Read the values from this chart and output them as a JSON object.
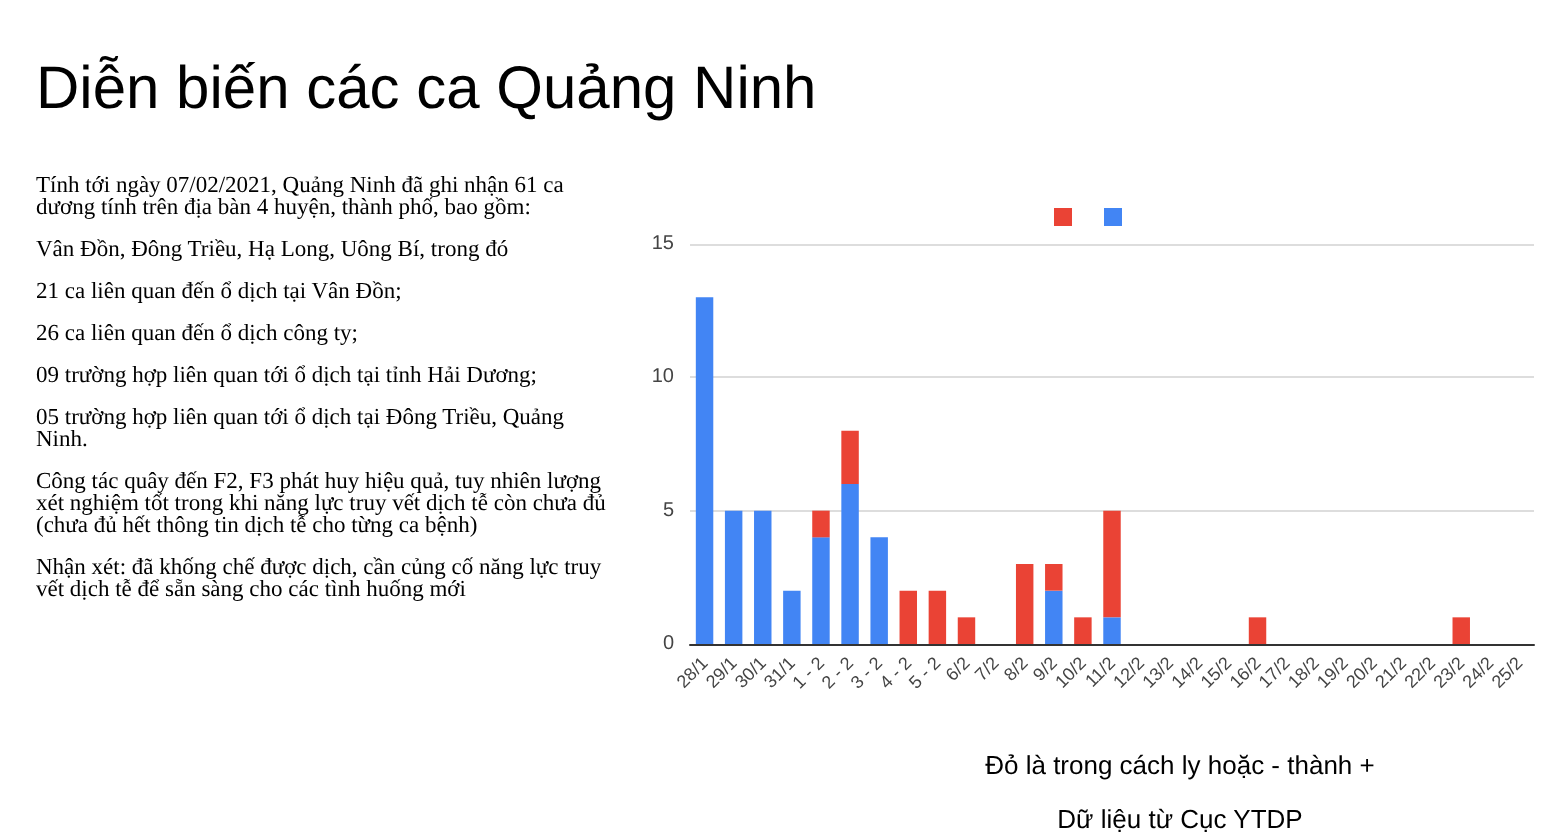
{
  "chart_data": {
    "type": "bar",
    "title": "Diễn biến các ca Quảng Ninh",
    "categories": [
      "28/1",
      "29/1",
      "30/1",
      "31/1",
      "1 - 2",
      "2 - 2",
      "3 - 2",
      "4 - 2",
      "5 - 2",
      "6/2",
      "7/2",
      "8/2",
      "9/2",
      "10/2",
      "11/2",
      "12/2",
      "13/2",
      "14/2",
      "15/2",
      "16/2",
      "17/2",
      "18/2",
      "19/2",
      "20/2",
      "21/2",
      "22/2",
      "23/2",
      "24/2",
      "25/2"
    ],
    "series": [
      {
        "color": "#4285f4",
        "values": [
          13,
          5,
          5,
          2,
          4,
          6,
          4,
          0,
          0,
          0,
          0,
          0,
          2,
          0,
          1,
          0,
          0,
          0,
          0,
          0,
          0,
          0,
          0,
          0,
          0,
          0,
          0,
          0,
          0
        ]
      },
      {
        "color": "#ea4335",
        "values": [
          0,
          0,
          0,
          0,
          1,
          2,
          0,
          2,
          2,
          1,
          0,
          3,
          1,
          1,
          4,
          0,
          0,
          0,
          0,
          1,
          0,
          0,
          0,
          0,
          0,
          0,
          1,
          0,
          0
        ]
      }
    ],
    "stacked": true,
    "ylim": [
      0,
      15
    ],
    "yticks": [
      0,
      5,
      10,
      15
    ],
    "grid": "y",
    "annotations": [
      "Tính tới ngày 07/02/2021, Quảng Ninh đã ghi nhận 61 ca dương tính trên địa bàn 4 huyện, thành phố, bao gồm:",
      "Vân Đồn, Đông Triều, Hạ Long, Uông Bí, trong đó",
      "21 ca liên quan đến ổ dịch tại Vân Đồn;",
      "26 ca liên quan đến ổ dịch công ty;",
      "09 trường hợp liên quan tới ổ dịch tại tỉnh Hải Dương;",
      "05 trường hợp liên quan tới ổ dịch tại Đông Triều, Quảng Ninh.",
      "Công tác quây đến F2, F3 phát huy hiệu quả, tuy nhiên lượng xét nghiệm tốt trong khi năng lực truy vết dịch tễ còn chưa đủ (chưa đủ hết thông tin dịch tễ cho từng ca bệnh)",
      "Nhận xét: đã khống chế được dịch, cần củng cố năng lực truy vết dịch tễ để sẵn sàng cho các tình huống mới",
      "Đỏ là trong cách ly  hoặc - thành +",
      "Dữ liệu từ Cục YTDP"
    ]
  }
}
